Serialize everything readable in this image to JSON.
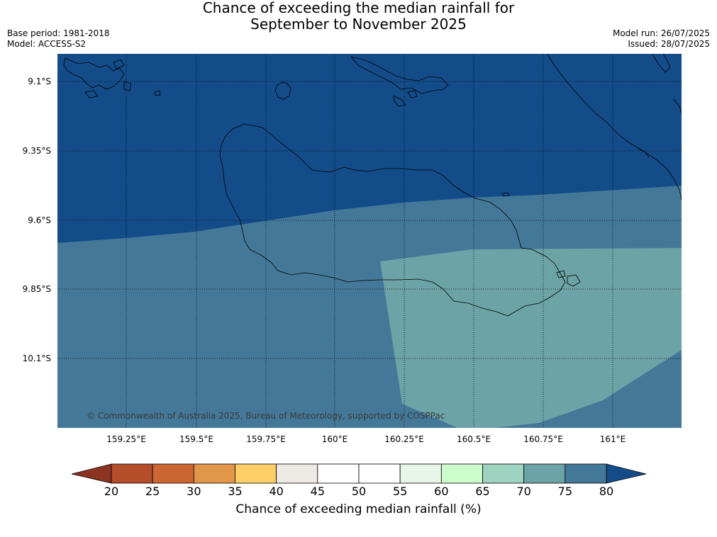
{
  "title": {
    "line1": "Chance of exceeding the median rainfall for",
    "line2": "September to November 2025"
  },
  "meta_left": {
    "base_period": "Base period: 1981-2018",
    "model": "Model: ACCESS-S2"
  },
  "meta_right": {
    "model_run": "Model run: 26/07/2025",
    "issued": "Issued: 28/07/2025"
  },
  "map": {
    "lat_labels": [
      "9.1°S",
      "9.35°S",
      "9.6°S",
      "9.85°S",
      "10.1°S"
    ],
    "lon_labels": [
      "159.25°E",
      "159.5°E",
      "159.75°E",
      "160°E",
      "160.25°E",
      "160.5°E",
      "160.75°E",
      "161°E"
    ],
    "regions": [
      {
        "category": "75-80",
        "color": "#447899"
      },
      {
        "category": "above-80",
        "color": "#134c89"
      },
      {
        "category": "70-75",
        "color": "#6ca3a6"
      }
    ],
    "coastline_color": "#000000",
    "gridline_style": "dotted",
    "copyright": "© Commonwealth of Australia 2025, Bureau of Meteorology, supported by COSPPac"
  },
  "colorbar": {
    "ticks": [
      "20",
      "25",
      "30",
      "35",
      "40",
      "45",
      "50",
      "55",
      "60",
      "65",
      "70",
      "75",
      "80"
    ],
    "below_color": "#8b3421",
    "above_color": "#134c89",
    "colors": [
      "#b34d2a",
      "#cc6633",
      "#e19649",
      "#fcd067",
      "#ede9e4",
      "#ffffff",
      "#ffffff",
      "#eaf5ea",
      "#ccfccb",
      "#9dd3bf",
      "#6ca3a6",
      "#447899"
    ],
    "label": "Chance of exceeding median rainfall (%)"
  }
}
